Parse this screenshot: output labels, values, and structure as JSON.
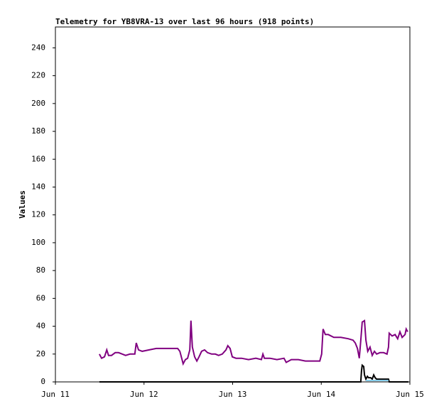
{
  "chart_data": {
    "type": "line",
    "title": "Telemetry for YB8VRA-13 over last 96 hours (918 points)",
    "y_label": "Values",
    "xlim": [
      0,
      96
    ],
    "xticks": [
      {
        "value": 0,
        "label": "Jun 11"
      },
      {
        "value": 24,
        "label": "Jun 12"
      },
      {
        "value": 48,
        "label": "Jun 13"
      },
      {
        "value": 72,
        "label": "Jun 14"
      },
      {
        "value": 96,
        "label": "Jun 15"
      }
    ],
    "ylim": [
      0,
      255
    ],
    "yticks": [
      0,
      20,
      40,
      60,
      80,
      100,
      120,
      140,
      160,
      180,
      200,
      220,
      240
    ],
    "series": [
      {
        "color": "#800080",
        "x": [
          11.9,
          12.5,
          13.3,
          13.9,
          14.4,
          15.2,
          16.2,
          17.1,
          18.1,
          19.0,
          20.2,
          21.5,
          21.9,
          22.5,
          23.5,
          25.4,
          27.3,
          29.2,
          31.2,
          33.1,
          33.7,
          34.2,
          34.6,
          35.2,
          35.8,
          36.4,
          36.7,
          37.1,
          37.7,
          38.3,
          38.9,
          39.6,
          40.4,
          41.2,
          42.3,
          43.3,
          44.2,
          45.2,
          46.2,
          46.7,
          47.3,
          47.9,
          48.9,
          50.4,
          52.3,
          54.3,
          55.8,
          56.2,
          56.6,
          58.1,
          60.0,
          61.9,
          62.5,
          63.9,
          65.8,
          67.7,
          69.6,
          71.6,
          72.1,
          72.5,
          73.1,
          73.9,
          75.4,
          77.3,
          79.3,
          80.6,
          81.2,
          81.8,
          82.3,
          82.7,
          83.1,
          83.7,
          84.1,
          84.6,
          85.2,
          85.8,
          86.4,
          87.0,
          87.9,
          88.9,
          89.8,
          90.2,
          90.4,
          91.2,
          92.0,
          92.7,
          93.3,
          93.9,
          94.7,
          95.0,
          95.4
        ],
        "values": [
          20,
          17,
          18,
          23,
          19,
          19,
          21,
          21,
          20,
          19,
          20,
          20,
          28,
          23,
          22,
          23,
          24,
          24,
          24,
          24,
          22,
          17,
          13,
          16,
          17,
          23,
          44,
          25,
          18,
          15,
          18,
          22,
          23,
          21,
          20,
          20,
          19,
          20,
          23,
          26,
          24,
          18,
          17,
          17,
          16,
          17,
          16,
          20,
          17,
          17,
          16,
          17,
          14,
          16,
          16,
          15,
          15,
          15,
          20,
          38,
          34,
          34,
          32,
          32,
          31,
          30,
          28,
          24,
          17,
          30,
          43,
          44,
          30,
          22,
          25,
          19,
          22,
          20,
          21,
          21,
          20,
          25,
          35,
          33,
          34,
          31,
          36,
          32,
          34,
          38,
          36
        ]
      },
      {
        "color": "#000000",
        "x": [
          11.9,
          82.7,
          82.9,
          83.1,
          83.5,
          83.7,
          84.1,
          84.5,
          84.8,
          85.4,
          85.8,
          86.2,
          86.6,
          87.0,
          90.2,
          90.4,
          95.6
        ],
        "values": [
          0,
          0,
          8,
          12,
          11,
          5,
          2,
          4,
          3,
          3,
          2,
          5,
          3,
          2,
          2,
          0,
          0
        ]
      },
      {
        "color": "#87ceeb",
        "x": [
          84.1,
          87.0,
          90.2
        ],
        "values": [
          1,
          1,
          1
        ]
      }
    ]
  }
}
